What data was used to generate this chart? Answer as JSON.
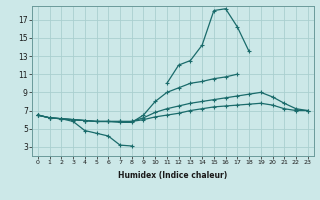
{
  "xlabel": "Humidex (Indice chaleur)",
  "ylabel": "",
  "bg_color": "#cce8e8",
  "line_color": "#1a6b6b",
  "grid_color": "#aacfcf",
  "xlim": [
    -0.5,
    23.5
  ],
  "ylim": [
    2,
    18.5
  ],
  "xticks": [
    0,
    1,
    2,
    3,
    4,
    5,
    6,
    7,
    8,
    9,
    10,
    11,
    12,
    13,
    14,
    15,
    16,
    17,
    18,
    19,
    20,
    21,
    22,
    23
  ],
  "yticks": [
    3,
    5,
    7,
    9,
    11,
    13,
    15,
    17
  ],
  "series": [
    [
      6.5,
      6.2,
      6.1,
      5.8,
      4.8,
      4.5,
      4.2,
      3.2,
      3.1,
      null,
      null,
      10.0,
      12.0,
      12.5,
      14.2,
      18.0,
      18.2,
      16.2,
      13.5,
      null,
      null,
      null,
      null,
      null
    ],
    [
      6.5,
      6.2,
      6.1,
      6.0,
      5.9,
      5.8,
      5.8,
      5.7,
      5.7,
      6.5,
      8.0,
      9.0,
      9.5,
      10.0,
      10.2,
      10.5,
      10.7,
      11.0,
      null,
      null,
      null,
      null,
      null,
      null
    ],
    [
      6.5,
      6.2,
      6.1,
      6.0,
      5.9,
      5.8,
      5.8,
      5.8,
      5.8,
      6.2,
      6.8,
      7.2,
      7.5,
      7.8,
      8.0,
      8.2,
      8.4,
      8.6,
      8.8,
      9.0,
      8.5,
      7.8,
      7.2,
      7.0
    ],
    [
      6.5,
      6.2,
      6.1,
      6.0,
      5.9,
      5.8,
      5.8,
      5.8,
      5.8,
      6.0,
      6.3,
      6.5,
      6.7,
      7.0,
      7.2,
      7.4,
      7.5,
      7.6,
      7.7,
      7.8,
      7.6,
      7.2,
      7.0,
      7.0
    ]
  ]
}
